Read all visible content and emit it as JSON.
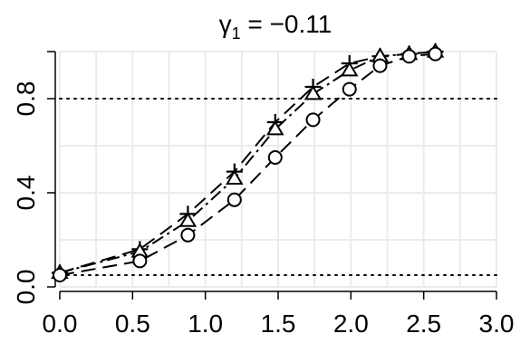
{
  "chart_data": {
    "type": "line",
    "title": "γ1 = −0.11",
    "title_main": "γ",
    "title_sub": "1",
    "title_rest": " = −0.11",
    "xlabel": "",
    "ylabel": "",
    "xlim": [
      0,
      3.0
    ],
    "ylim": [
      0,
      1.0
    ],
    "x_ticks": [
      0.0,
      0.5,
      1.0,
      1.5,
      2.0,
      2.5,
      3.0
    ],
    "x_tick_labels": [
      "0.0",
      "0.5",
      "1.0",
      "1.5",
      "2.0",
      "2.5",
      "3.0"
    ],
    "y_ticks": [
      0.0,
      0.4,
      0.8
    ],
    "y_tick_labels": [
      "0.0",
      "0.4",
      "0.8"
    ],
    "grid": true,
    "reference_lines": [
      0.05,
      0.8
    ],
    "x": [
      0.0,
      0.55,
      0.88,
      1.2,
      1.48,
      1.74,
      1.99,
      2.2,
      2.4,
      2.58
    ],
    "series": [
      {
        "marker": "plus",
        "dash": "long-dash",
        "values": [
          0.06,
          0.16,
          0.31,
          0.49,
          0.7,
          0.85,
          0.95,
          0.98,
          0.99,
          1.0
        ]
      },
      {
        "marker": "triangle",
        "dash": "dash-dot",
        "values": [
          0.06,
          0.15,
          0.28,
          0.46,
          0.67,
          0.82,
          0.92,
          0.98,
          0.99,
          1.0
        ]
      },
      {
        "marker": "circle",
        "dash": "long-dash",
        "values": [
          0.05,
          0.11,
          0.22,
          0.37,
          0.55,
          0.71,
          0.84,
          0.94,
          0.98,
          0.99
        ]
      }
    ]
  }
}
